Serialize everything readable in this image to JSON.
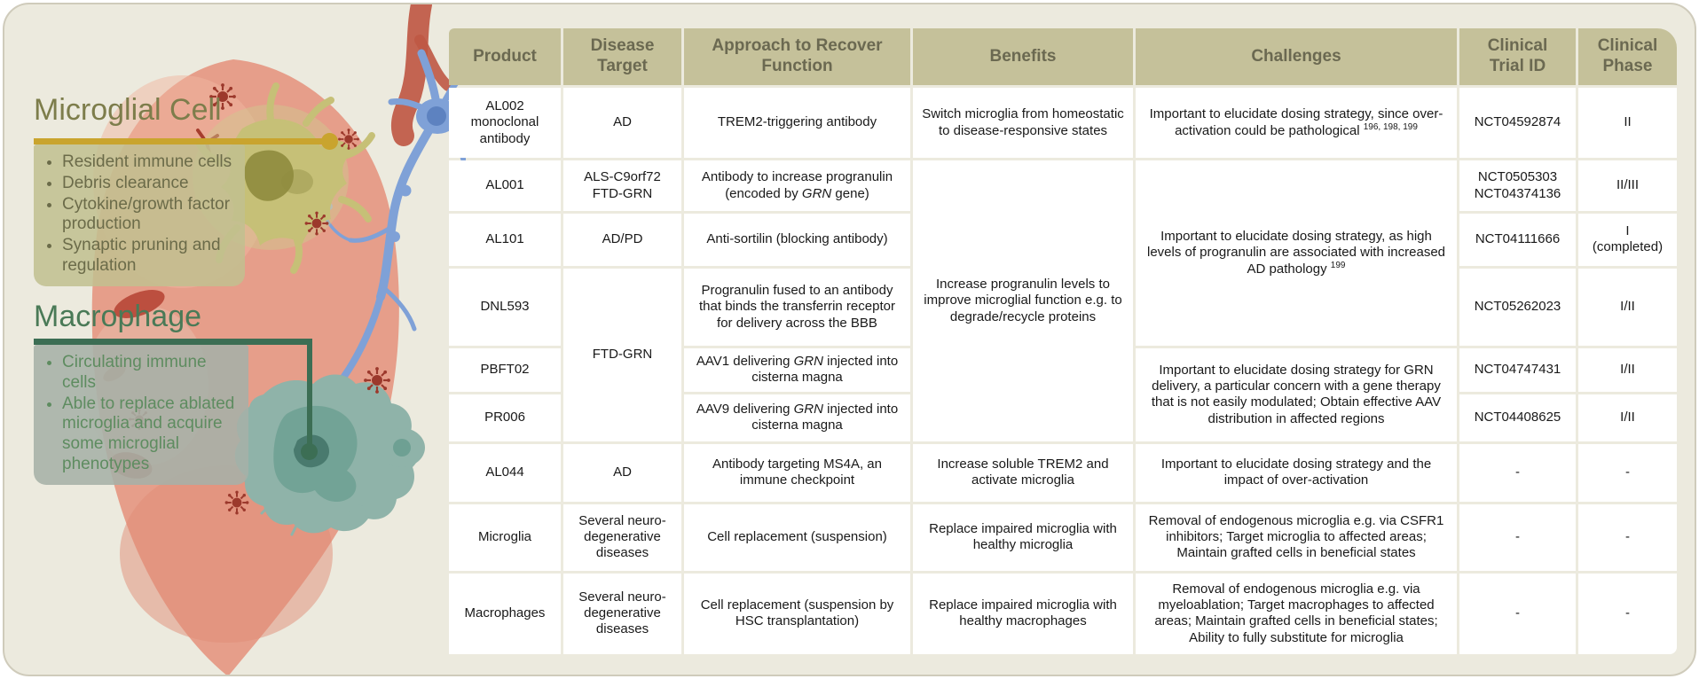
{
  "figure": {
    "left_panel": {
      "microglial": {
        "title": "Microglial Cell",
        "bullets": [
          "Resident immune cells",
          "Debris clearance",
          "Cytokine/growth factor production",
          "Synaptic pruning and regulation"
        ]
      },
      "macrophage": {
        "title": "Macrophage",
        "bullets": [
          "Circulating immune cells",
          "Able to replace ablated microglia and acquire some microglial phenotypes"
        ]
      }
    },
    "illustration": {
      "elements": [
        "brain-tissue",
        "blood-vessel",
        "neuron",
        "microglial-cell",
        "macrophage",
        "virus-particles"
      ]
    },
    "palette": {
      "panel_bg": "#eceade",
      "header_bg": "#c5c19a",
      "header_text": "#6b6951",
      "accent_gold": "#c9a42e",
      "accent_green": "#3c6e54",
      "microglia_title": "#7d7d4b",
      "macrophage_title": "#4a7a57",
      "microglia_bullet_text": "#6b6b49",
      "macrophage_bullet_text": "#5e8c60"
    }
  },
  "table": {
    "headers": [
      "Product",
      "Disease\nTarget",
      "Approach to Recover\nFunction",
      "Benefits",
      "Challenges",
      "Clinical\nTrial ID",
      "Clinical\nPhase"
    ],
    "merged": {
      "benefits_progranulin": "Increase progranulin levels to improve microglial function e.g. to degrade/recycle proteins",
      "challenges_progranulin": "Important to elucidate dosing strategy, as high levels of progranulin are associated with increased AD pathology ^199^",
      "challenges_grn_delivery": "Important to elucidate dosing strategy for GRN delivery, a particular concern with a gene therapy that is not easily modulated; Obtain effective AAV distribution in affected regions",
      "disease_ftd_grn": "FTD-GRN"
    },
    "rows": [
      {
        "product": "AL002\nmonoclonal\nantibody",
        "disease": "AD",
        "approach": "TREM2-triggering antibody",
        "benefits": "Switch microglia from homeostatic to disease-responsive states",
        "challenges": "Important to elucidate dosing strategy, since over-activation could be pathological ^196, 198, 199^",
        "trial": "NCT04592874",
        "phase": "II"
      },
      {
        "product": "AL001",
        "disease": "ALS-C9orf72\nFTD-GRN",
        "approach": "Antibody to increase progranulin (encoded by *GRN* gene)",
        "trial": "NCT0505303\nNCT04374136",
        "phase": "II/III"
      },
      {
        "product": "AL101",
        "disease": "AD/PD",
        "approach": "Anti-sortilin (blocking antibody)",
        "trial": "NCT04111666",
        "phase": "I\n(completed)"
      },
      {
        "product": "DNL593",
        "approach": "Progranulin fused to an antibody that binds the transferrin receptor for delivery across the BBB",
        "trial": "NCT05262023",
        "phase": "I/II"
      },
      {
        "product": "PBFT02",
        "approach": "AAV1 delivering *GRN* injected into cisterna magna",
        "trial": "NCT04747431",
        "phase": "I/II"
      },
      {
        "product": "PR006",
        "approach": "AAV9 delivering *GRN* injected into cisterna magna",
        "trial": "NCT04408625",
        "phase": "I/II"
      },
      {
        "product": "AL044",
        "disease": "AD",
        "approach": "Antibody targeting MS4A, an immune checkpoint",
        "benefits": "Increase soluble TREM2 and activate microglia",
        "challenges": "Important to elucidate dosing strategy and the impact of over-activation",
        "trial": "-",
        "phase": "-"
      },
      {
        "product": "Microglia",
        "disease": "Several neuro-\ndegenerative\ndiseases",
        "approach": "Cell replacement (suspension)",
        "benefits": "Replace impaired microglia with healthy microglia",
        "challenges": "Removal of endogenous microglia e.g. via CSFR1 inhibitors; Target microglia to affected areas; Maintain grafted cells in beneficial states",
        "trial": "-",
        "phase": "-"
      },
      {
        "product": "Macrophages",
        "disease": "Several neuro-\ndegenerative\ndiseases",
        "approach": "Cell replacement (suspension by HSC transplantation)",
        "benefits": "Replace impaired microglia with healthy macrophages",
        "challenges": "Removal of endogenous microglia e.g. via myeloablation; Target macrophages to affected areas; Maintain grafted cells in beneficial states; Ability to fully substitute for microglia",
        "trial": "-",
        "phase": "-"
      }
    ]
  }
}
